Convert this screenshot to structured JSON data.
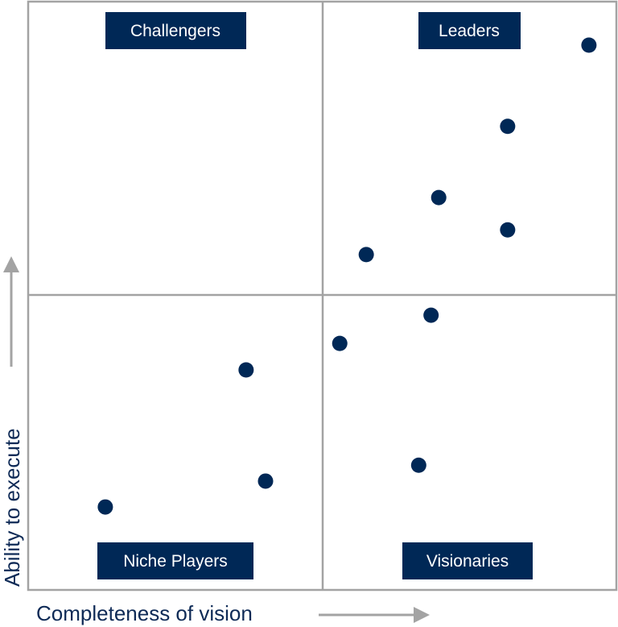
{
  "chart_data": {
    "type": "scatter",
    "title": "",
    "xlabel": "Completeness of vision",
    "ylabel": "Ability to execute",
    "xlim": [
      0,
      100
    ],
    "ylim": [
      0,
      100
    ],
    "grid": false,
    "quadrants": [
      "Challengers",
      "Leaders",
      "Niche Players",
      "Visionaries"
    ],
    "points": [
      {
        "x": 95.2,
        "y": 92.6
      },
      {
        "x": 81.4,
        "y": 78.8
      },
      {
        "x": 69.7,
        "y": 66.7
      },
      {
        "x": 81.4,
        "y": 61.2
      },
      {
        "x": 57.4,
        "y": 57.0
      },
      {
        "x": 68.4,
        "y": 46.7
      },
      {
        "x": 52.9,
        "y": 41.9
      },
      {
        "x": 37.0,
        "y": 37.4
      },
      {
        "x": 66.3,
        "y": 21.2
      },
      {
        "x": 40.3,
        "y": 18.5
      },
      {
        "x": 13.1,
        "y": 14.1
      }
    ],
    "colors": {
      "point": "#002856",
      "label_bg": "#002856",
      "frame": "#a3a3a3",
      "axis_text": "#0e2a56"
    }
  }
}
